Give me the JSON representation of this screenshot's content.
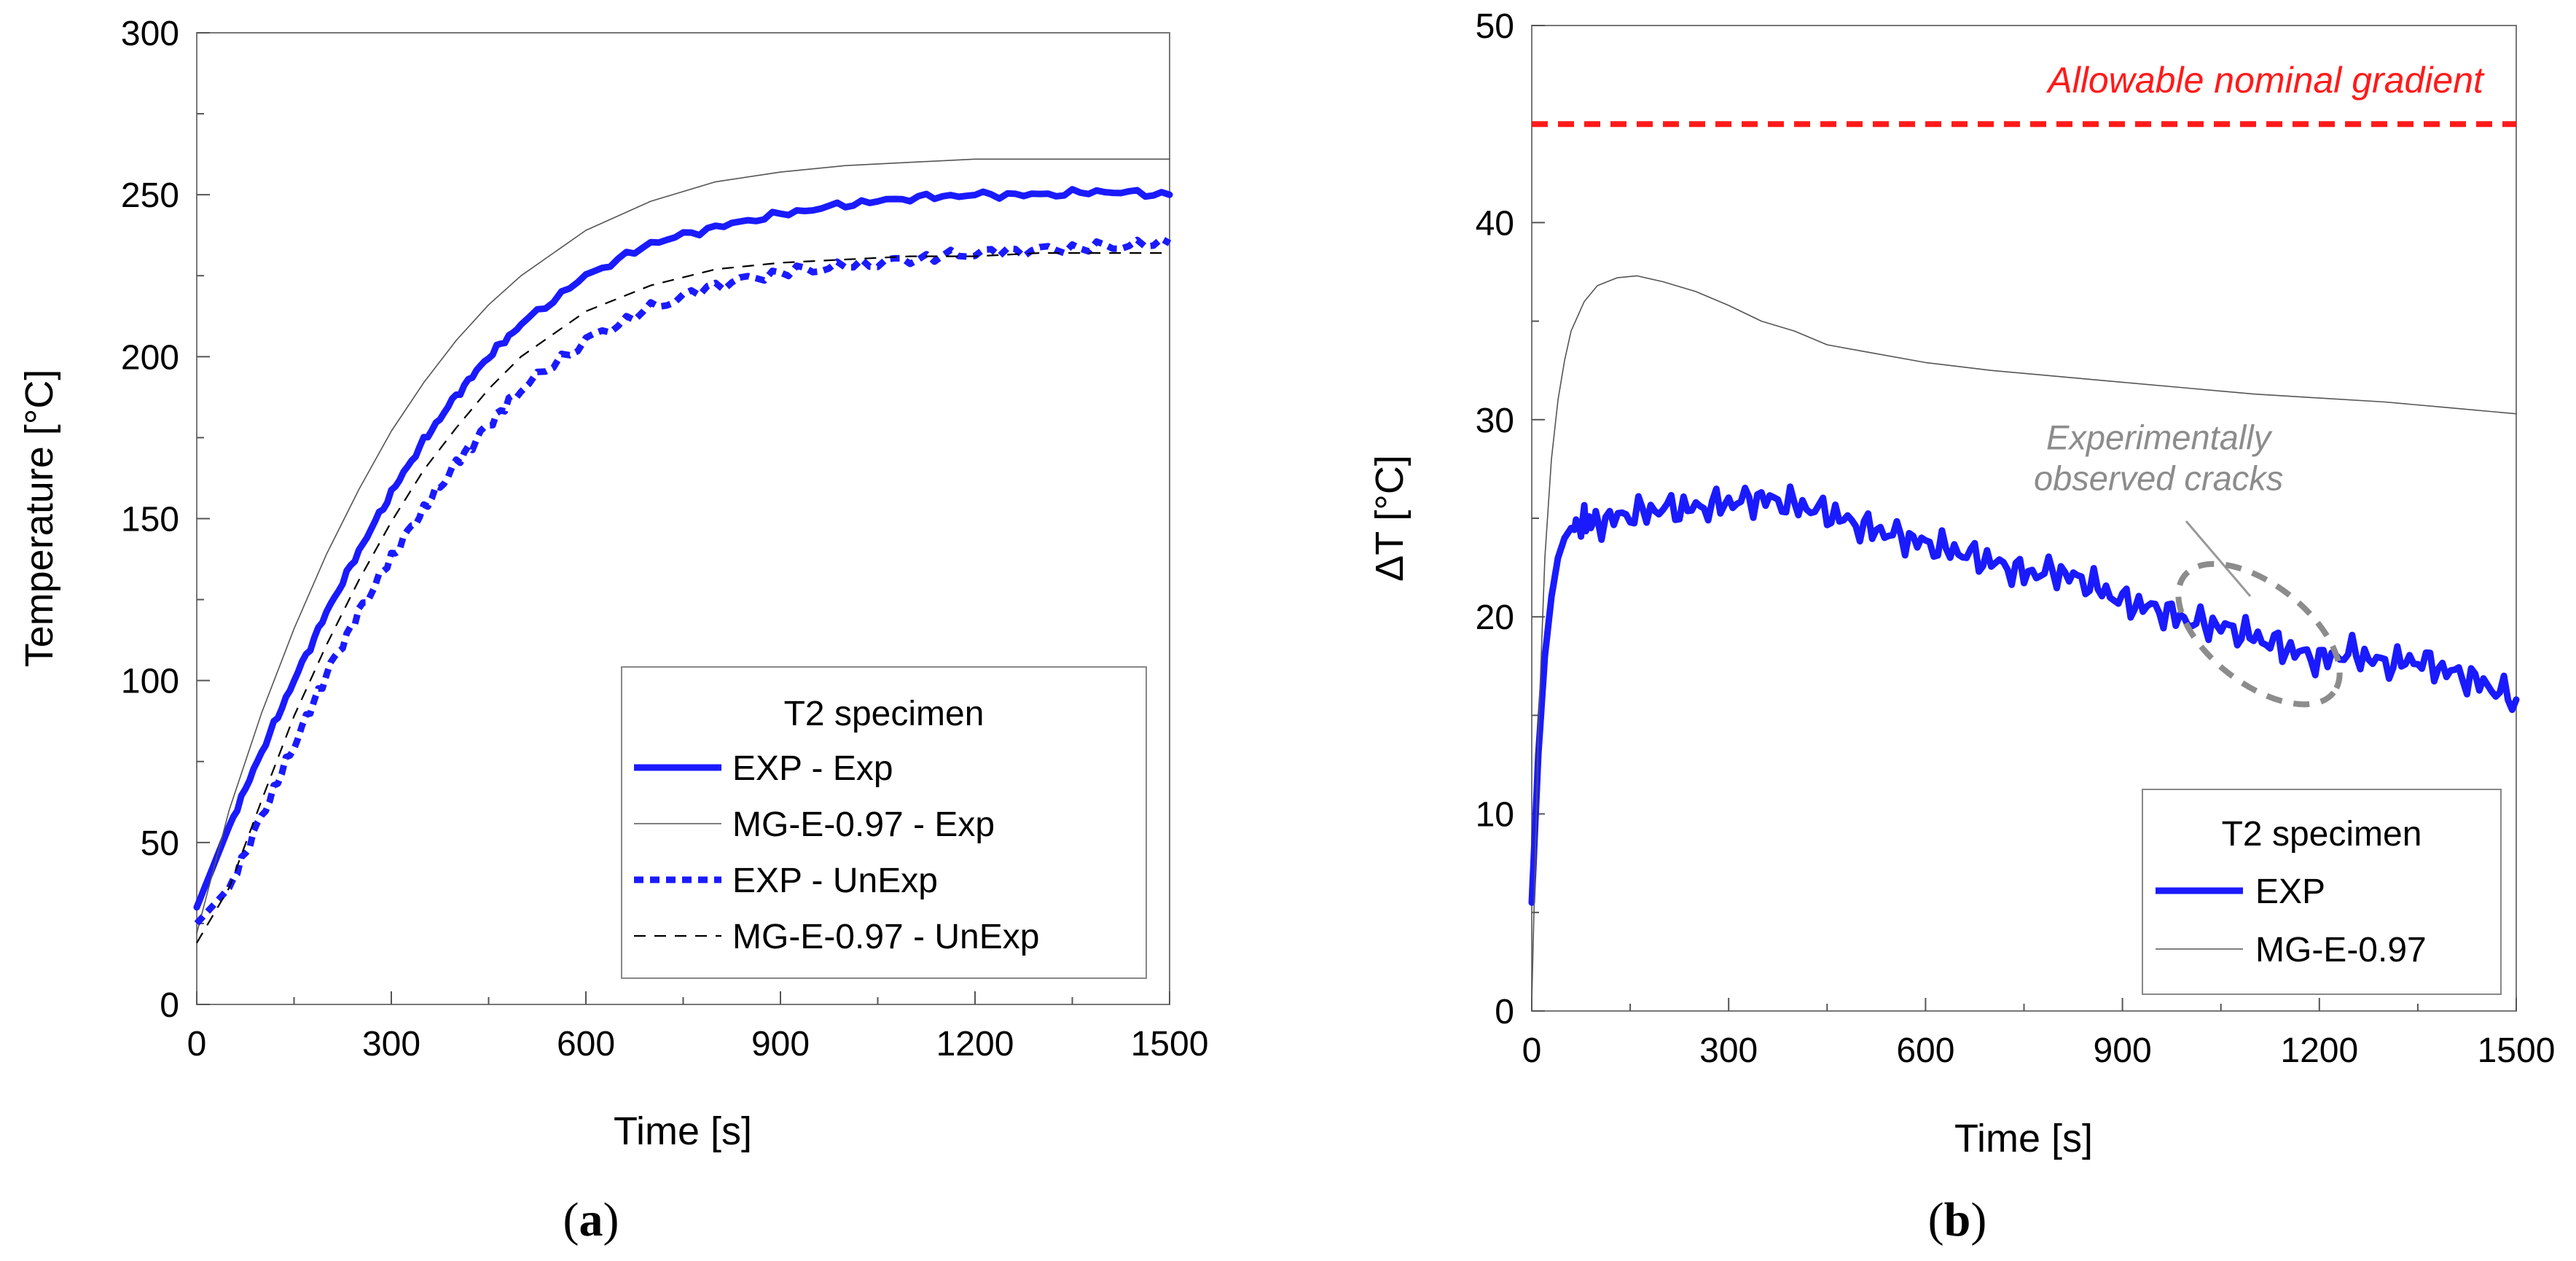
{
  "chart_data": [
    {
      "type": "line",
      "panel": "(a)",
      "caption_open": "(",
      "caption_letter": "a",
      "caption_close": ")",
      "xlabel": "Time  [s]",
      "ylabel": "Temperature  [°C]",
      "xlim": [
        0,
        1500
      ],
      "ylim": [
        0,
        300
      ],
      "xticks": [
        0,
        300,
        600,
        900,
        1200,
        1500
      ],
      "yticks": [
        0,
        50,
        100,
        150,
        200,
        250,
        300
      ],
      "grid": false,
      "legend": {
        "title": "T2 specimen",
        "placement": "bottom-right"
      },
      "series": [
        {
          "name": "EXP - Exp",
          "style": "thick-solid",
          "color": "#1a1aff",
          "x": [
            0,
            50,
            100,
            150,
            200,
            250,
            300,
            350,
            400,
            450,
            500,
            600,
            700,
            800,
            900,
            1000,
            1100,
            1200,
            1300,
            1400,
            1500
          ],
          "y": [
            30,
            55,
            78,
            100,
            121,
            140,
            158,
            174,
            188,
            200,
            210,
            225,
            235,
            240,
            244,
            247,
            249,
            250,
            250,
            251,
            250
          ]
        },
        {
          "name": "MG-E-0.97 - Exp",
          "style": "thin-solid",
          "color": "#555555",
          "x": [
            0,
            50,
            100,
            150,
            200,
            250,
            300,
            350,
            400,
            450,
            500,
            600,
            700,
            800,
            900,
            1000,
            1100,
            1200,
            1300,
            1400,
            1500
          ],
          "y": [
            22,
            60,
            90,
            116,
            139,
            159,
            177,
            192,
            205,
            216,
            225,
            239,
            248,
            254,
            257,
            259,
            260,
            261,
            261,
            261,
            261
          ]
        },
        {
          "name": "EXP - UnExp",
          "style": "thick-dotted",
          "color": "#1a1aff",
          "x": [
            0,
            50,
            100,
            150,
            200,
            250,
            300,
            350,
            400,
            450,
            500,
            600,
            700,
            800,
            900,
            1000,
            1100,
            1200,
            1300,
            1400,
            1500
          ],
          "y": [
            25,
            36,
            58,
            80,
            102,
            121,
            138,
            153,
            167,
            179,
            190,
            205,
            215,
            222,
            226,
            228,
            230,
            232,
            233,
            234,
            235
          ]
        },
        {
          "name": "MG-E-0.97 - UnExp",
          "style": "thin-dashed",
          "color": "#000000",
          "x": [
            0,
            50,
            100,
            150,
            200,
            250,
            300,
            350,
            400,
            450,
            500,
            600,
            700,
            800,
            900,
            1000,
            1100,
            1200,
            1300,
            1400,
            1500
          ],
          "y": [
            19,
            36,
            63,
            89,
            111,
            131,
            149,
            165,
            178,
            190,
            200,
            214,
            222,
            227,
            229,
            230,
            231,
            231,
            232,
            232,
            232
          ]
        }
      ]
    },
    {
      "type": "line",
      "panel": "(b)",
      "caption_open": "(",
      "caption_letter": "b",
      "caption_close": ")",
      "xlabel": "Time  [s]",
      "ylabel": "ΔT  [°C]",
      "xlim": [
        0,
        1500
      ],
      "ylim": [
        0,
        50
      ],
      "xticks": [
        0,
        300,
        600,
        900,
        1200,
        1500
      ],
      "yticks": [
        0,
        10,
        20,
        30,
        40,
        50
      ],
      "grid": false,
      "legend": {
        "title": "T2 specimen",
        "placement": "bottom-right"
      },
      "series": [
        {
          "name": "EXP",
          "style": "thick-solid",
          "color": "#1a1aff",
          "x": [
            0,
            10,
            20,
            30,
            40,
            50,
            60,
            80,
            100,
            150,
            200,
            250,
            300,
            350,
            400,
            450,
            500,
            550,
            600,
            650,
            700,
            750,
            800,
            850,
            900,
            950,
            1000,
            1050,
            1100,
            1150,
            1200,
            1250,
            1300,
            1350,
            1400,
            1450,
            1500
          ],
          "y": [
            5.5,
            13,
            18,
            21,
            23,
            24,
            24.5,
            24.8,
            24.8,
            25.2,
            25.5,
            25.5,
            25.8,
            26,
            25.7,
            25.3,
            24.6,
            24.2,
            23.7,
            23.3,
            22.8,
            22.2,
            22.3,
            21.7,
            20.8,
            20.4,
            19.8,
            19.5,
            19,
            18.4,
            17.8,
            18.2,
            17.6,
            17.8,
            17.2,
            16.6,
            15.8
          ]
        },
        {
          "name": "MG-E-0.97",
          "style": "thin-solid",
          "color": "#555555",
          "x": [
            0,
            10,
            20,
            30,
            40,
            50,
            60,
            80,
            100,
            130,
            160,
            200,
            250,
            300,
            350,
            400,
            450,
            500,
            600,
            700,
            800,
            900,
            1000,
            1100,
            1200,
            1300,
            1400,
            1500
          ],
          "y": [
            0.5,
            14,
            23,
            28,
            31,
            33,
            34.5,
            36,
            36.8,
            37.2,
            37.3,
            37,
            36.5,
            35.8,
            35,
            34.5,
            33.8,
            33.5,
            32.9,
            32.5,
            32.2,
            31.9,
            31.6,
            31.3,
            31.1,
            30.9,
            30.6,
            30.3
          ]
        },
        {
          "name": "Allowable nominal gradient",
          "style": "thick-dashed",
          "color": "#ff1a1a",
          "x": [
            0,
            1500
          ],
          "y": [
            45,
            45
          ]
        }
      ],
      "annotations": [
        {
          "text": "Allowable nominal gradient",
          "color": "#ff1a1a",
          "x": 1450,
          "y": 46.6
        },
        {
          "text_line1": "Experimentally",
          "text_line2": "observed cracks",
          "color": "#8c8c8c",
          "x": 955,
          "y": 28.5
        }
      ]
    }
  ]
}
